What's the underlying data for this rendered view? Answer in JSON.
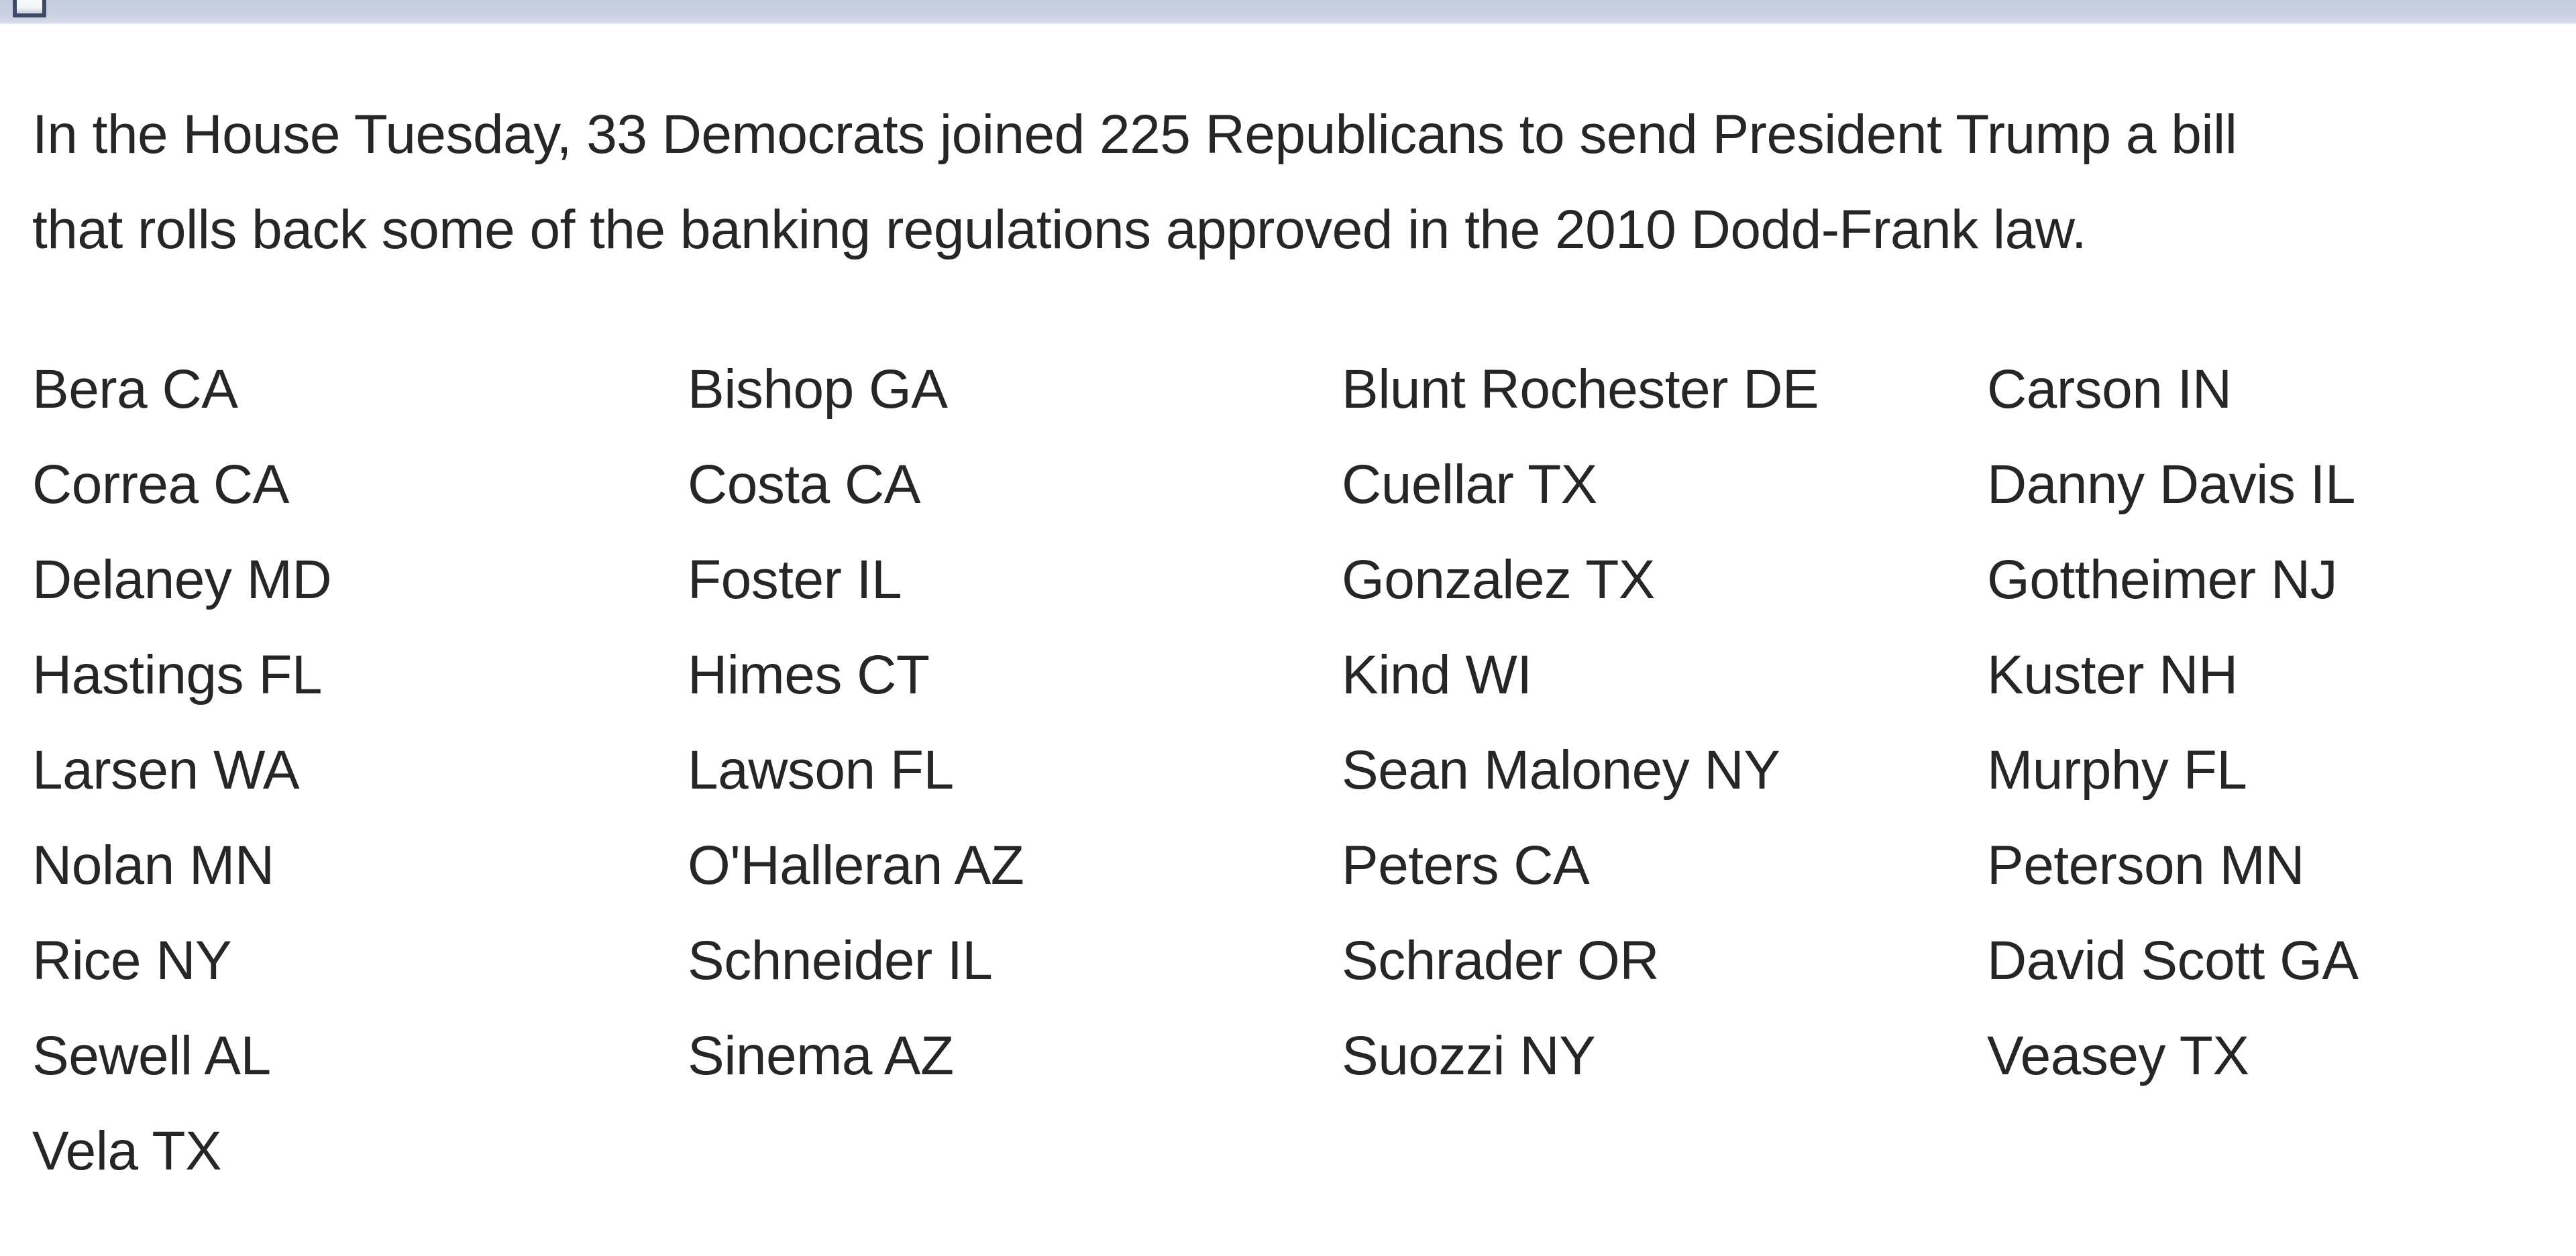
{
  "window": {
    "titlebar_color": "#c9d1e2",
    "icon": "square-outline-icon"
  },
  "colors": {
    "text": "#262626",
    "background": "#ffffff",
    "titlebar": "#c9d1e2",
    "icon_border": "#3e4b66"
  },
  "paragraph": {
    "line1": "In the House Tuesday, 33 Democrats joined 225 Republicans to send President Trump a bill",
    "line2": "that rolls back some of the banking regulations approved in the 2010 Dodd-Frank law."
  },
  "legislators": {
    "columns": [
      [
        "Bera CA",
        "Correa CA",
        "Delaney MD",
        "Hastings FL",
        "Larsen WA",
        "Nolan MN",
        "Rice NY",
        "Sewell AL",
        "Vela TX"
      ],
      [
        "Bishop GA",
        "Costa CA",
        "Foster IL",
        "Himes CT",
        "Lawson FL",
        "O'Halleran AZ",
        "Schneider IL",
        "Sinema AZ"
      ],
      [
        "Blunt Rochester DE",
        "Cuellar TX",
        "Gonzalez TX",
        "Kind WI",
        "Sean Maloney NY",
        "Peters CA",
        "Schrader OR",
        "Suozzi NY"
      ],
      [
        "Carson IN",
        "Danny Davis IL",
        "Gottheimer NJ",
        "Kuster NH",
        "Murphy FL",
        "Peterson MN",
        "David Scott GA",
        "Veasey TX"
      ]
    ]
  }
}
